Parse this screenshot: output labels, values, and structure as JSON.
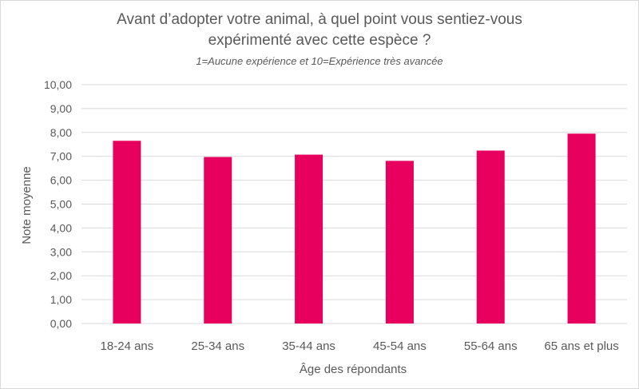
{
  "chart_data": {
    "type": "bar",
    "title_line1": "Avant d’adopter votre animal, à quel point vous sentiez-vous",
    "title_line2": "expérimenté avec cette espèce ?",
    "subtitle": "1=Aucune expérience  et 10=Expérience très avancée",
    "xlabel": "Âge des répondants",
    "ylabel": "Note moyenne",
    "categories": [
      "18-24 ans",
      "25-34 ans",
      "35-44 ans",
      "45-54 ans",
      "55-64 ans",
      "65 ans et plus"
    ],
    "values": [
      7.65,
      6.97,
      7.07,
      6.81,
      7.24,
      7.95
    ],
    "ylim": [
      0,
      10
    ],
    "yticks": [
      "0,00",
      "1,00",
      "2,00",
      "3,00",
      "4,00",
      "5,00",
      "6,00",
      "7,00",
      "8,00",
      "9,00",
      "10,00"
    ],
    "grid": true,
    "bar_color": "#E8005E",
    "grid_color": "#D9D9D9"
  }
}
